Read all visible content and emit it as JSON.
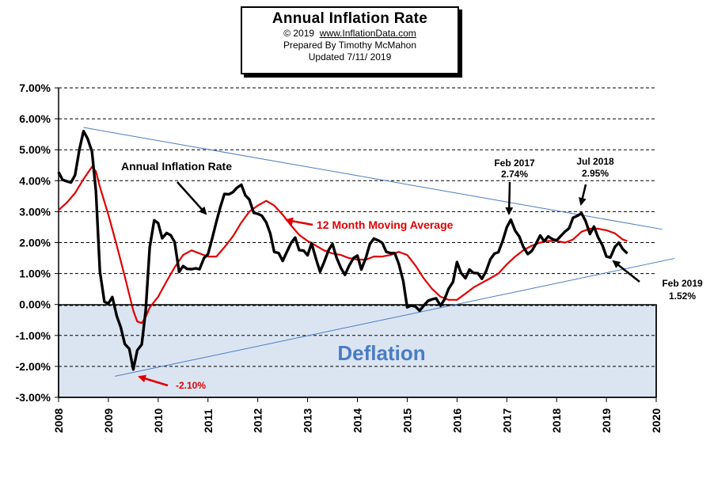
{
  "header": {
    "title": "Annual  Inflation Rate",
    "copyright": "© 2019",
    "site": "www.InflationData.com",
    "prepared": "Prepared  By Timothy  McMahon",
    "updated": "Updated   7/11/ 2019"
  },
  "chart_data": {
    "type": "line",
    "title": "Annual  Inflation Rate",
    "xlim": [
      2008,
      2020
    ],
    "ylim": [
      -3.0,
      7.0
    ],
    "x_ticks": [
      "2008",
      "2009",
      "2010",
      "2011",
      "2012",
      "2013",
      "2014",
      "2015",
      "2016",
      "2017",
      "2018",
      "2019",
      "2020"
    ],
    "y_ticks": [
      "7.00%",
      "6.00%",
      "5.00%",
      "4.00%",
      "3.00%",
      "2.00%",
      "1.00%",
      "0.00%",
      "-1.00%",
      "-2.00%",
      "-3.00%"
    ],
    "grid": "horizontal dashed",
    "series": [
      {
        "name": "Annual Inflation Rate",
        "color": "#000000",
        "x": [
          2008.0,
          2008.08,
          2008.17,
          2008.25,
          2008.33,
          2008.42,
          2008.5,
          2008.58,
          2008.67,
          2008.75,
          2008.83,
          2008.92,
          2009.0,
          2009.08,
          2009.17,
          2009.25,
          2009.33,
          2009.42,
          2009.5,
          2009.58,
          2009.67,
          2009.75,
          2009.83,
          2009.92,
          2010.0,
          2010.08,
          2010.17,
          2010.25,
          2010.33,
          2010.42,
          2010.5,
          2010.58,
          2010.67,
          2010.75,
          2010.83,
          2010.92,
          2011.0,
          2011.08,
          2011.17,
          2011.25,
          2011.33,
          2011.42,
          2011.5,
          2011.58,
          2011.67,
          2011.75,
          2011.83,
          2011.92,
          2012.0,
          2012.08,
          2012.17,
          2012.25,
          2012.33,
          2012.42,
          2012.5,
          2012.58,
          2012.67,
          2012.75,
          2012.83,
          2012.92,
          2013.0,
          2013.08,
          2013.17,
          2013.25,
          2013.33,
          2013.42,
          2013.5,
          2013.58,
          2013.67,
          2013.75,
          2013.83,
          2013.92,
          2014.0,
          2014.08,
          2014.17,
          2014.25,
          2014.33,
          2014.42,
          2014.5,
          2014.58,
          2014.67,
          2014.75,
          2014.83,
          2014.92,
          2015.0,
          2015.08,
          2015.17,
          2015.25,
          2015.33,
          2015.42,
          2015.5,
          2015.58,
          2015.67,
          2015.75,
          2015.83,
          2015.92,
          2016.0,
          2016.08,
          2016.17,
          2016.25,
          2016.33,
          2016.42,
          2016.5,
          2016.58,
          2016.67,
          2016.75,
          2016.83,
          2016.92,
          2017.0,
          2017.08,
          2017.17,
          2017.25,
          2017.33,
          2017.42,
          2017.5,
          2017.58,
          2017.67,
          2017.75,
          2017.83,
          2017.92,
          2018.0,
          2018.08,
          2018.17,
          2018.25,
          2018.33,
          2018.42,
          2018.5,
          2018.58,
          2018.67,
          2018.75,
          2018.83,
          2018.92,
          2019.0,
          2019.08,
          2019.17,
          2019.25,
          2019.33,
          2019.42
        ],
        "y": [
          4.28,
          4.03,
          3.98,
          3.94,
          4.18,
          5.02,
          5.6,
          5.37,
          4.94,
          3.66,
          1.07,
          0.09,
          0.03,
          0.24,
          -0.38,
          -0.74,
          -1.28,
          -1.43,
          -2.1,
          -1.48,
          -1.29,
          -0.18,
          1.84,
          2.72,
          2.63,
          2.14,
          2.31,
          2.24,
          2.02,
          1.05,
          1.24,
          1.15,
          1.14,
          1.17,
          1.14,
          1.5,
          1.63,
          2.11,
          2.68,
          3.16,
          3.57,
          3.56,
          3.63,
          3.77,
          3.87,
          3.53,
          3.39,
          2.96,
          2.93,
          2.87,
          2.65,
          2.3,
          1.7,
          1.66,
          1.41,
          1.69,
          1.99,
          2.16,
          1.76,
          1.74,
          1.59,
          1.98,
          1.47,
          1.06,
          1.36,
          1.75,
          1.96,
          1.52,
          1.18,
          0.96,
          1.24,
          1.5,
          1.58,
          1.13,
          1.51,
          1.95,
          2.13,
          2.07,
          1.99,
          1.7,
          1.66,
          1.66,
          1.32,
          0.76,
          -0.09,
          -0.03,
          -0.07,
          -0.2,
          -0.04,
          0.12,
          0.17,
          0.2,
          -0.04,
          0.17,
          0.5,
          0.73,
          1.37,
          1.02,
          0.85,
          1.13,
          1.02,
          1.01,
          0.83,
          1.06,
          1.46,
          1.64,
          1.69,
          2.07,
          2.5,
          2.74,
          2.38,
          2.2,
          1.87,
          1.63,
          1.73,
          1.94,
          2.23,
          2.04,
          2.2,
          2.11,
          2.07,
          2.21,
          2.36,
          2.46,
          2.8,
          2.87,
          2.95,
          2.7,
          2.28,
          2.52,
          2.18,
          1.91,
          1.55,
          1.52,
          1.86,
          2.0,
          1.79,
          1.65
        ]
      },
      {
        "name": "12 Month Moving Average",
        "color": "#e00000",
        "x": [
          2008.0,
          2008.17,
          2008.33,
          2008.5,
          2008.67,
          2008.75,
          2008.83,
          2009.0,
          2009.17,
          2009.33,
          2009.5,
          2009.58,
          2009.67,
          2009.75,
          2009.83,
          2010.0,
          2010.17,
          2010.33,
          2010.5,
          2010.67,
          2010.83,
          2011.0,
          2011.17,
          2011.33,
          2011.5,
          2011.67,
          2011.83,
          2012.0,
          2012.17,
          2012.33,
          2012.5,
          2012.67,
          2012.83,
          2013.0,
          2013.17,
          2013.33,
          2013.5,
          2013.67,
          2013.83,
          2014.0,
          2014.17,
          2014.33,
          2014.5,
          2014.67,
          2014.83,
          2015.0,
          2015.17,
          2015.33,
          2015.5,
          2015.67,
          2015.83,
          2016.0,
          2016.17,
          2016.33,
          2016.5,
          2016.67,
          2016.83,
          2017.0,
          2017.17,
          2017.33,
          2017.5,
          2017.67,
          2017.83,
          2018.0,
          2018.17,
          2018.33,
          2018.5,
          2018.67,
          2018.83,
          2019.0,
          2019.17,
          2019.33,
          2019.42
        ],
        "y": [
          3.05,
          3.3,
          3.6,
          4.05,
          4.45,
          4.3,
          3.8,
          2.9,
          1.9,
          0.9,
          -0.2,
          -0.55,
          -0.6,
          -0.4,
          -0.1,
          0.25,
          0.75,
          1.2,
          1.6,
          1.75,
          1.65,
          1.55,
          1.55,
          1.85,
          2.2,
          2.65,
          3.0,
          3.2,
          3.35,
          3.2,
          2.9,
          2.55,
          2.25,
          2.05,
          1.9,
          1.75,
          1.65,
          1.6,
          1.5,
          1.45,
          1.45,
          1.55,
          1.55,
          1.6,
          1.7,
          1.6,
          1.25,
          0.85,
          0.5,
          0.25,
          0.15,
          0.15,
          0.35,
          0.55,
          0.7,
          0.85,
          1.0,
          1.3,
          1.55,
          1.75,
          1.9,
          2.0,
          2.05,
          2.05,
          2.0,
          2.1,
          2.35,
          2.45,
          2.45,
          2.4,
          2.3,
          2.1,
          2.05
        ]
      }
    ],
    "trend_lines": [
      {
        "from": [
          2008.5,
          5.72
        ],
        "to": [
          2020.12,
          2.43
        ],
        "color": "#4a7cc4"
      },
      {
        "from": [
          2009.13,
          -2.32
        ],
        "to": [
          2020.37,
          1.49
        ],
        "color": "#4a7cc4"
      }
    ],
    "shaded_region": {
      "label": "Deflation",
      "y_from": 0.0,
      "y_to": -3.0,
      "color": "#dbe5f1"
    },
    "annotations": {
      "annual_label": "Annual Inflation Rate",
      "ma_label": "12 Month Moving Average",
      "low_label": "-2.10%",
      "feb2017_label": "Feb 2017",
      "feb2017_value": "2.74%",
      "jul2018_label": "Jul 2018",
      "jul2018_value": "2.95%",
      "feb2019_label": "Feb 2019",
      "feb2019_value": "1.52%",
      "deflation_label": "Deflation"
    }
  }
}
